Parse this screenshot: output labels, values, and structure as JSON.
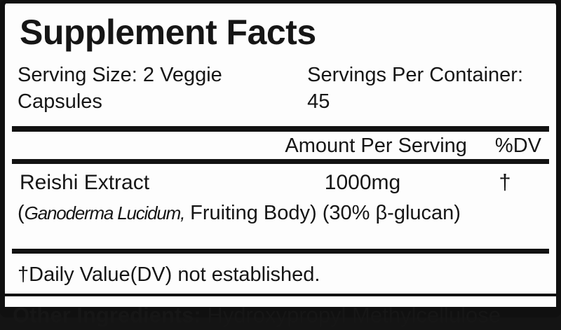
{
  "colors": {
    "text": "#161616",
    "background": "#fdfdfd",
    "rule": "#121212"
  },
  "label": {
    "title": "Supplement Facts",
    "serving_size": "Serving Size: 2 Veggie Capsules",
    "servings_per_container": "Servings Per Container: 45",
    "columns": {
      "amount": "Amount Per Serving",
      "dv": "%DV"
    },
    "rows": [
      {
        "name": "Reishi Extract",
        "amount": "1000mg",
        "dv": "†",
        "detail_prefix": "(",
        "detail_botanical": "Ganoderma Lucidum,",
        "detail_rest": " Fruiting Body) (30% β-glucan)"
      }
    ],
    "footnote": "†Daily Value(DV) not established.",
    "other_ingredients": {
      "label": "Other Ingredients:",
      "value": " Hydroxypropyl Methylcellulose"
    }
  }
}
